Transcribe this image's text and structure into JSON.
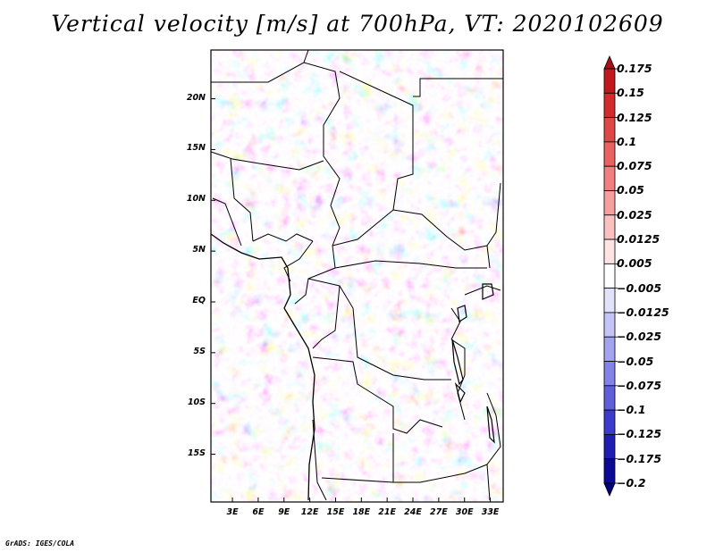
{
  "title": "Vertical velocity [m/s] at 700hPa, VT: 2020102609",
  "credit": "GrADS: IGES/COLA",
  "map": {
    "lon_labels": [
      "3E",
      "6E",
      "9E",
      "12E",
      "15E",
      "18E",
      "21E",
      "24E",
      "27E",
      "30E",
      "33E"
    ],
    "lon_values": [
      3,
      6,
      9,
      12,
      15,
      18,
      21,
      24,
      27,
      30,
      33
    ],
    "lat_labels": [
      "20N",
      "15N",
      "10N",
      "5N",
      "EQ",
      "5S",
      "10S",
      "15S"
    ],
    "lat_values": [
      20,
      15,
      10,
      5,
      0,
      -5,
      -10,
      -15
    ],
    "lon_range": [
      0.5,
      34.5
    ],
    "lat_range": [
      -19.7,
      24.8
    ],
    "field": "vertical velocity",
    "level": "700hPa",
    "valid_time": "2020102609"
  },
  "colorbar": {
    "labels": [
      "0.175",
      "0.15",
      "0.125",
      "0.1",
      "0.075",
      "0.05",
      "0.025",
      "0.0125",
      "0.005",
      "−0.005",
      "−0.0125",
      "−0.025",
      "−0.05",
      "−0.075",
      "−0.1",
      "−0.125",
      "−0.175",
      "−0.2"
    ],
    "colors": [
      "#a50f15",
      "#c0181c",
      "#d22b2b",
      "#e04646",
      "#ea6161",
      "#f27f7f",
      "#f79f9f",
      "#fbc1c1",
      "#fde3e3",
      "#ffffff",
      "#e2e2fb",
      "#c4c4f6",
      "#a3a3ef",
      "#8282e8",
      "#5f5fdc",
      "#3b3bcc",
      "#1e1eb4",
      "#0a0a96",
      "#000078"
    ]
  }
}
